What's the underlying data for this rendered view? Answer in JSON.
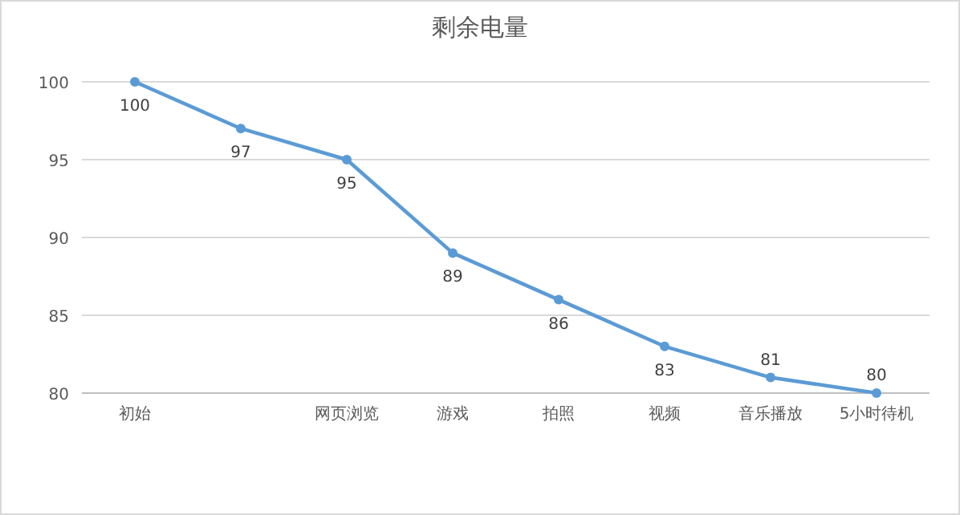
{
  "chart_data": {
    "type": "line",
    "title": "剩余电量",
    "categories": [
      "初始",
      null,
      "网页浏览",
      "游戏",
      "拍照",
      "视频",
      "音乐播放",
      "5小时待机"
    ],
    "series": [
      {
        "color": "#5b9bd5",
        "values": [
          100,
          97,
          95,
          89,
          86,
          83,
          81,
          80
        ]
      }
    ],
    "ylim": [
      80,
      100
    ],
    "yticks": [
      80,
      85,
      90,
      95,
      100
    ],
    "grid": "y",
    "marker": "circle",
    "line_style": "solid",
    "data_labels": true
  }
}
